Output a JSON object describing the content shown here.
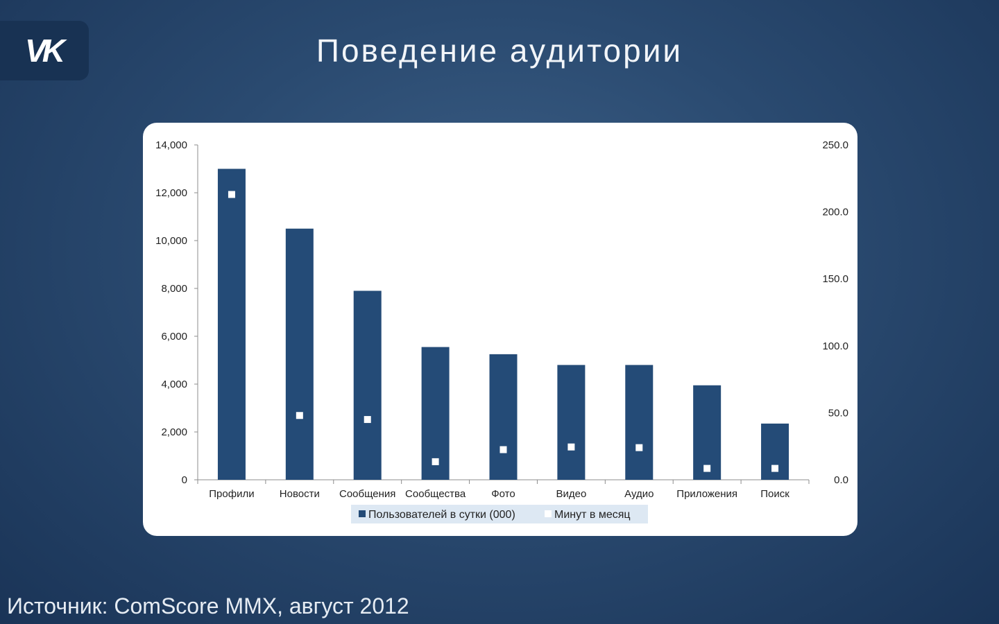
{
  "logo": {
    "text": "VK"
  },
  "header": {
    "title": "Поведение аудитории"
  },
  "footer": {
    "source": "Источник: ComScore MMX, август 2012"
  },
  "colors": {
    "bar": "#244b77",
    "marker": "#ffffff",
    "background": "#2a4a70",
    "panel": "#ffffff",
    "legend_bg": "#dde8f3"
  },
  "chart_data": {
    "type": "bar",
    "categories": [
      "Профили",
      "Новости",
      "Сообщения",
      "Сообщества",
      "Фото",
      "Видео",
      "Аудио",
      "Приложения",
      "Поиск"
    ],
    "series": [
      {
        "name": "Пользователей в сутки (000)",
        "axis": "left",
        "type": "bar",
        "values": [
          13000,
          10500,
          7900,
          5550,
          5250,
          4800,
          4800,
          3950,
          2350
        ]
      },
      {
        "name": "Минут в месяц",
        "axis": "right",
        "type": "scatter",
        "values": [
          213,
          48,
          45,
          13.5,
          22.5,
          24.5,
          24,
          8.5,
          8.5
        ]
      }
    ],
    "y_left": {
      "min": 0,
      "max": 14000,
      "ticks": [
        "0",
        "2,000",
        "4,000",
        "6,000",
        "8,000",
        "10,000",
        "12,000",
        "14,000"
      ]
    },
    "y_right": {
      "min": 0,
      "max": 250,
      "ticks": [
        "0.0",
        "50.0",
        "100.0",
        "150.0",
        "200.0",
        "250.0"
      ]
    },
    "legend": {
      "placement": "bottom"
    },
    "grid": false
  }
}
